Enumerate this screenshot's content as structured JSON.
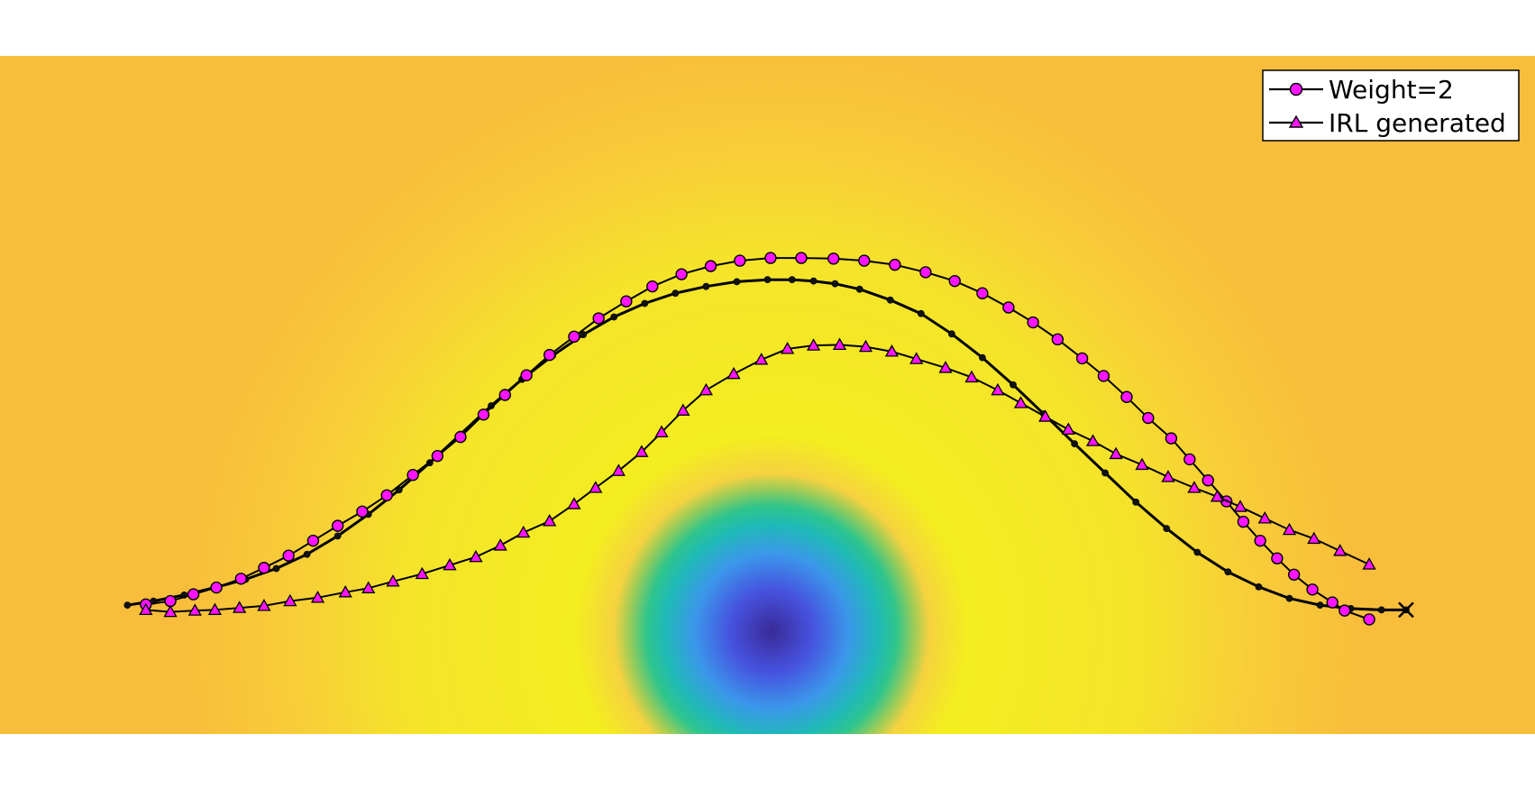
{
  "chart_data": {
    "type": "line",
    "title": "",
    "xlabel": "",
    "ylabel": "",
    "xlim": [
      0,
      100
    ],
    "ylim": [
      0,
      100
    ],
    "axes_visible": false,
    "grid": false,
    "legend_position": "top-right",
    "background": {
      "type": "radial-field",
      "center": [
        50,
        14.5
      ],
      "colors": [
        "#3a2a98",
        "#4653e0",
        "#3b97ea",
        "#1fbab6",
        "#2fc58c",
        "#9ccc58",
        "#f6d23f",
        "#f3ee1f",
        "#f5e42a",
        "#f8cc39",
        "#f8bd3b"
      ]
    },
    "series": [
      {
        "name": "Weight=2",
        "marker": "circle",
        "marker_color": "#ff14ff",
        "line_color": "#000000",
        "x": [
          9.5,
          11.1,
          12.6,
          14.1,
          15.7,
          17.2,
          18.8,
          20.4,
          22.0,
          23.6,
          25.2,
          26.9,
          28.5,
          30.0,
          31.5,
          32.9,
          34.3,
          35.8,
          37.4,
          39.0,
          40.8,
          42.5,
          44.4,
          46.3,
          48.2,
          50.2,
          52.2,
          54.3,
          56.3,
          58.3,
          60.3,
          62.2,
          64.0,
          65.7,
          67.3,
          68.9,
          70.5,
          71.9,
          73.4,
          74.8,
          76.3,
          77.5,
          78.7,
          79.9,
          81.0,
          82.1,
          83.2,
          84.3,
          85.5,
          86.8,
          87.6,
          89.2
        ],
        "y": [
          19.1,
          19.6,
          20.6,
          21.6,
          22.9,
          24.5,
          26.3,
          28.5,
          30.7,
          32.8,
          35.2,
          38.2,
          41.0,
          43.8,
          47.1,
          50.0,
          52.9,
          55.9,
          58.6,
          61.3,
          63.8,
          66.0,
          67.8,
          69.0,
          69.8,
          70.2,
          70.2,
          70.1,
          69.8,
          69.2,
          68.1,
          66.8,
          65.0,
          62.9,
          60.7,
          58.2,
          55.4,
          52.8,
          49.7,
          46.6,
          43.6,
          40.5,
          37.4,
          34.3,
          31.3,
          28.5,
          25.9,
          23.5,
          21.3,
          19.4,
          18.2,
          16.9
        ]
      },
      {
        "name": "IRL generated",
        "marker": "triangle",
        "marker_color": "#ff14ff",
        "line_color": "#000000",
        "x": [
          9.5,
          11.1,
          12.7,
          14.0,
          15.6,
          17.2,
          18.9,
          20.7,
          22.5,
          24.0,
          25.6,
          27.5,
          29.3,
          31.0,
          32.6,
          34.1,
          35.8,
          37.4,
          38.8,
          40.3,
          41.8,
          43.1,
          44.5,
          46.0,
          47.8,
          49.6,
          51.3,
          53.0,
          54.7,
          56.4,
          58.1,
          59.7,
          61.6,
          63.3,
          65.0,
          66.5,
          68.1,
          69.6,
          71.2,
          72.7,
          74.4,
          76.1,
          77.8,
          79.3,
          80.8,
          82.4,
          84.0,
          85.6,
          87.3,
          89.2
        ],
        "y": [
          18.3,
          18.0,
          18.2,
          18.3,
          18.6,
          18.9,
          19.6,
          20.1,
          20.9,
          21.5,
          22.5,
          23.6,
          24.9,
          26.1,
          27.8,
          29.7,
          31.4,
          33.9,
          36.3,
          38.8,
          41.6,
          44.5,
          47.7,
          50.7,
          53.1,
          55.2,
          56.8,
          57.3,
          57.4,
          57.1,
          56.4,
          55.3,
          54.0,
          52.6,
          50.7,
          48.8,
          46.8,
          44.9,
          43.2,
          41.3,
          39.7,
          37.9,
          36.3,
          35.0,
          33.5,
          31.8,
          30.1,
          28.8,
          27.0,
          25.0
        ]
      },
      {
        "name": "",
        "marker": "dot",
        "marker_color": "#111111",
        "line_color": "#000000",
        "x": [
          8.3,
          10.0,
          12.0,
          14.0,
          16.0,
          18.0,
          20.0,
          22.0,
          24.0,
          26.0,
          28.0,
          30.0,
          32.0,
          34.0,
          36.0,
          38.0,
          40.0,
          42.0,
          44.0,
          46.0,
          48.0,
          50.0,
          51.6,
          53.0,
          54.4,
          56.0,
          58.0,
          60.0,
          62.0,
          64.0,
          66.0,
          68.0,
          70.0,
          72.0,
          74.0,
          76.0,
          78.0,
          80.0,
          82.0,
          84.0,
          86.0,
          88.0,
          90.0,
          91.6
        ],
        "y": [
          19.0,
          19.6,
          20.5,
          21.6,
          22.8,
          24.4,
          26.5,
          29.2,
          32.4,
          36.0,
          40.0,
          44.2,
          48.4,
          52.3,
          55.8,
          58.9,
          61.5,
          63.5,
          65.0,
          66.0,
          66.7,
          67.0,
          67.0,
          66.8,
          66.4,
          65.6,
          64.0,
          62.0,
          59.0,
          55.5,
          51.5,
          47.2,
          42.8,
          38.5,
          34.2,
          30.3,
          26.8,
          23.9,
          21.7,
          20.0,
          19.0,
          18.5,
          18.3,
          18.3
        ]
      }
    ],
    "end_marker": {
      "x": 91.6,
      "y": 18.3,
      "marker": "x"
    }
  }
}
